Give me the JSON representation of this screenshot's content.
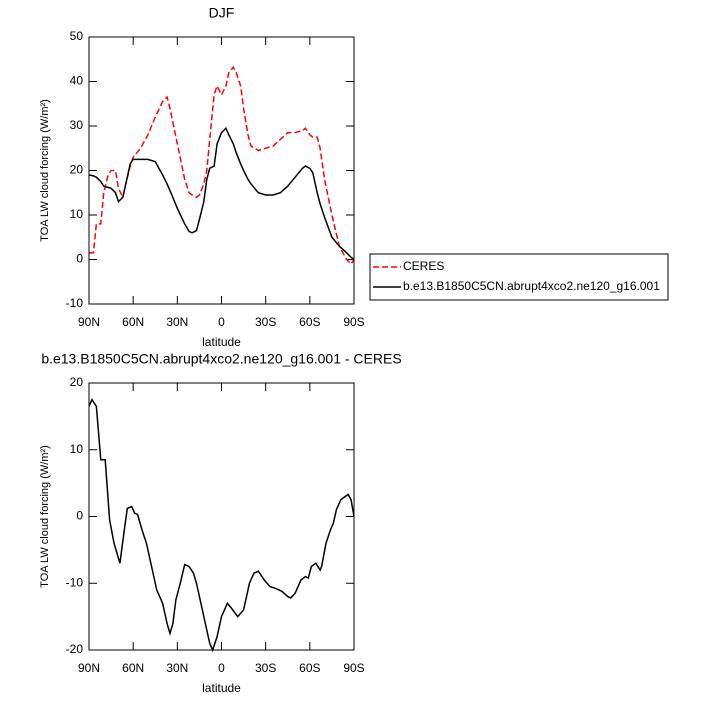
{
  "chart_data": [
    {
      "type": "line",
      "title": "DJF",
      "xlabel": "latitude",
      "ylabel": "TOA LW cloud forcing (W/m²)",
      "xlim": [
        90,
        -90
      ],
      "ylim": [
        -10,
        50
      ],
      "xticks": [
        {
          "value": 90,
          "label": "90N"
        },
        {
          "value": 60,
          "label": "60N"
        },
        {
          "value": 30,
          "label": "30N"
        },
        0,
        {
          "value": -30,
          "label": "30S"
        },
        {
          "value": -60,
          "label": "60S"
        },
        {
          "value": -90,
          "label": "90S"
        }
      ],
      "yticks": [
        -10,
        0,
        10,
        20,
        30,
        40,
        50
      ],
      "legend": "outside-right",
      "x": [
        90,
        87,
        85,
        82,
        80,
        77,
        75,
        72,
        70,
        67,
        65,
        62,
        60,
        55,
        50,
        45,
        40,
        37,
        35,
        30,
        25,
        22,
        20,
        17,
        15,
        12,
        10,
        8,
        5,
        3,
        0,
        -3,
        -5,
        -8,
        -10,
        -13,
        -15,
        -18,
        -20,
        -25,
        -30,
        -35,
        -40,
        -45,
        -50,
        -55,
        -57,
        -60,
        -62,
        -65,
        -67,
        -70,
        -75,
        -80,
        -85,
        -88,
        -90
      ],
      "series": [
        {
          "name": "CERES",
          "color": "#ff0000",
          "dash": true,
          "values": [
            1.5,
            1.5,
            8,
            8,
            15,
            19,
            20,
            20,
            16,
            14,
            17,
            21,
            23,
            25,
            28,
            32,
            35.5,
            36.5,
            34,
            26,
            18,
            15,
            14.5,
            14,
            14.5,
            17,
            20,
            27,
            37,
            39,
            37,
            39,
            42,
            43.2,
            42,
            39,
            34,
            28,
            25.5,
            24.5,
            25,
            25.5,
            27,
            28.5,
            28.5,
            29,
            29.5,
            28,
            27.5,
            27.5,
            25,
            18,
            10,
            3,
            0,
            -1,
            0
          ]
        },
        {
          "name": "b.e13.B1850C5CN.abrupt4xco2.ne120_g16.001",
          "color": "#000000",
          "dash": false,
          "values": [
            19,
            18.8,
            18.5,
            17.5,
            16.5,
            16.2,
            16,
            15,
            13,
            14,
            17,
            21.5,
            22.5,
            22.5,
            22.5,
            22,
            19,
            17,
            15.5,
            11.5,
            8,
            6.3,
            6,
            6.5,
            9,
            13,
            18,
            20.5,
            21,
            26,
            28.5,
            29.5,
            28,
            26,
            24,
            21.5,
            20,
            18,
            17,
            15,
            14.5,
            14.5,
            15,
            16.5,
            18.5,
            20.5,
            21,
            20.5,
            19.5,
            15,
            12.5,
            9.5,
            5,
            3,
            1.5,
            0.5,
            0
          ]
        }
      ]
    },
    {
      "type": "line",
      "title": "b.e13.B1850C5CN.abrupt4xco2.ne120_g16.001 - CERES",
      "xlabel": "latitude",
      "ylabel": "TOA LW cloud forcing (W/m²)",
      "xlim": [
        90,
        -90
      ],
      "ylim": [
        -20,
        20
      ],
      "xticks": [
        {
          "value": 90,
          "label": "90N"
        },
        {
          "value": 60,
          "label": "60N"
        },
        {
          "value": 30,
          "label": "30N"
        },
        0,
        {
          "value": -30,
          "label": "30S"
        },
        {
          "value": -60,
          "label": "60S"
        },
        {
          "value": -90,
          "label": "90S"
        }
      ],
      "yticks": [
        -20,
        -10,
        0,
        10,
        20
      ],
      "x": [
        90,
        88,
        85,
        82,
        79,
        76,
        73,
        69,
        66,
        64,
        61,
        59,
        57,
        54,
        51,
        47,
        44,
        40,
        37,
        35,
        33,
        31,
        28,
        25,
        22,
        19,
        17,
        14,
        10,
        8,
        6,
        3,
        0,
        -4,
        -7,
        -11,
        -15,
        -19,
        -22,
        -25,
        -29,
        -33,
        -37,
        -41,
        -45,
        -47,
        -50,
        -54,
        -57,
        -59,
        -61,
        -64,
        -67,
        -68,
        -71,
        -74,
        -76,
        -78,
        -81,
        -84,
        -86,
        -88,
        -90
      ],
      "series": [
        {
          "color": "#000000",
          "dash": false,
          "values": [
            16.5,
            17.5,
            16.5,
            8.5,
            8.5,
            -0.5,
            -4,
            -7,
            -2,
            1.2,
            1.5,
            0.5,
            0.3,
            -2,
            -4,
            -8,
            -11,
            -13,
            -16,
            -17.5,
            -16,
            -12.5,
            -10,
            -7.2,
            -7.5,
            -8.5,
            -10,
            -13,
            -17,
            -19,
            -20,
            -18,
            -15,
            -13,
            -13.8,
            -15,
            -14,
            -10,
            -8.5,
            -8.2,
            -9.5,
            -10.5,
            -10.8,
            -11.2,
            -12,
            -12.2,
            -11.5,
            -9.5,
            -9,
            -9.2,
            -7.5,
            -7,
            -8,
            -7.5,
            -4,
            -2,
            -1,
            1,
            2.5,
            3,
            3.3,
            2.5,
            0
          ]
        }
      ]
    }
  ]
}
